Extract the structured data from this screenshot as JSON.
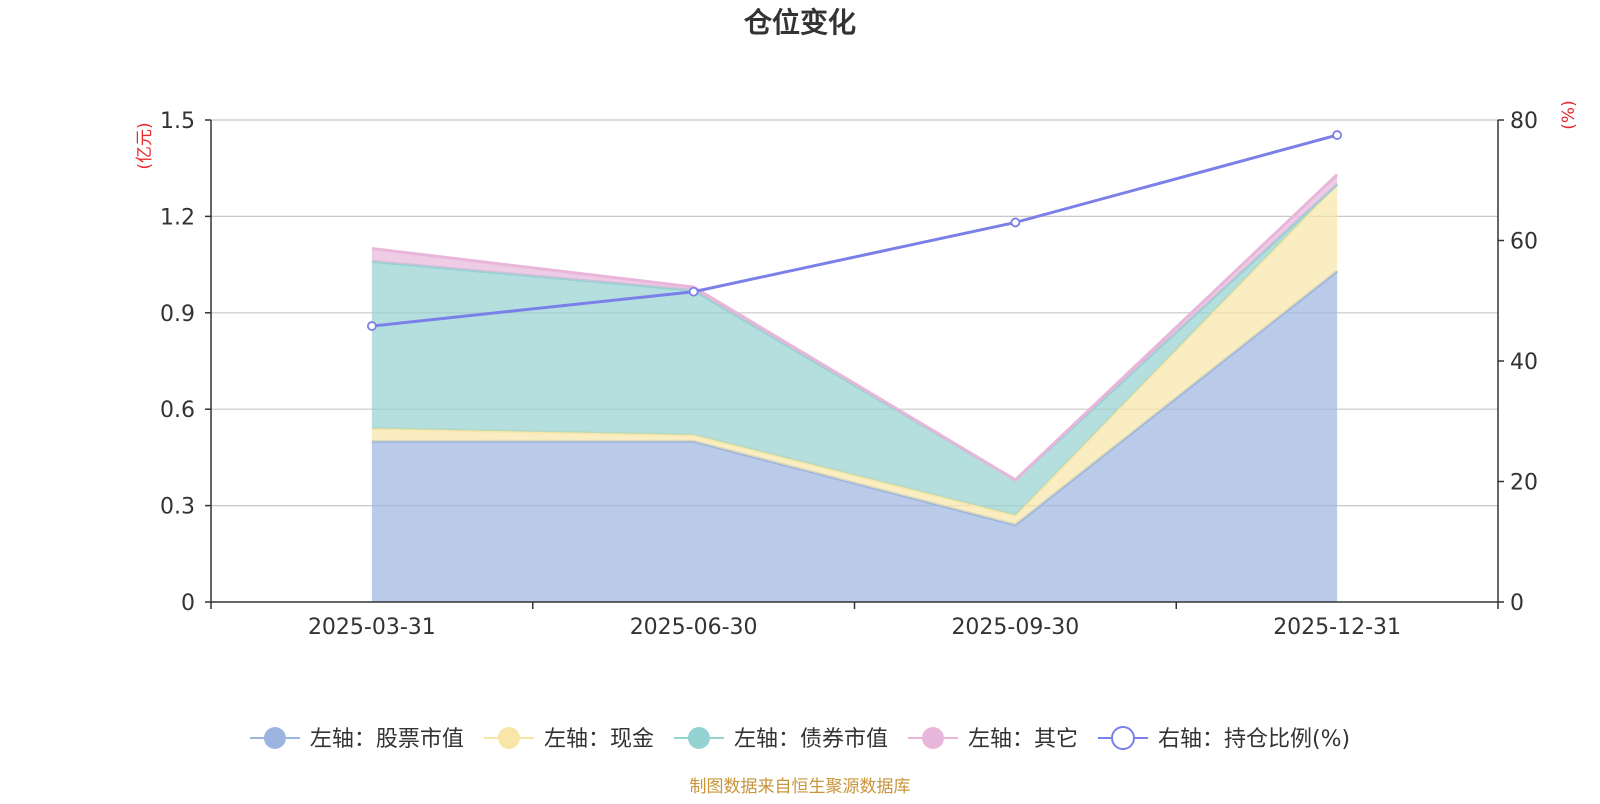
{
  "chart_data": {
    "type": "area",
    "title": "仓位变化",
    "categories": [
      "2025-03-31",
      "2025-06-30",
      "2025-09-30",
      "2025-12-31"
    ],
    "left_axis": {
      "unit_label": "(亿元)",
      "ylim": [
        0,
        1.5
      ],
      "ticks": [
        "0",
        "0.3",
        "0.6",
        "0.9",
        "1.2",
        "1.5"
      ]
    },
    "right_axis": {
      "unit_label": "(%)",
      "ylim": [
        0,
        80
      ],
      "ticks": [
        "0",
        "20",
        "40",
        "60",
        "80"
      ]
    },
    "series": [
      {
        "name": "股票市值",
        "legend": "左轴：股票市值",
        "axis": "left",
        "type": "stacked_area",
        "color": "#9bb5e0",
        "values": [
          0.5,
          0.5,
          0.24,
          1.03
        ]
      },
      {
        "name": "现金",
        "legend": "左轴：现金",
        "axis": "left",
        "type": "stacked_area",
        "color": "#f7e6a6",
        "values": [
          0.04,
          0.02,
          0.03,
          0.27
        ]
      },
      {
        "name": "债券市值",
        "legend": "左轴：债券市值",
        "axis": "left",
        "type": "stacked_area",
        "color": "#95d2d2",
        "values": [
          0.52,
          0.45,
          0.11,
          0.0
        ]
      },
      {
        "name": "其它",
        "legend": "左轴：其它",
        "axis": "left",
        "type": "stacked_area",
        "color": "#e8b6da",
        "values": [
          0.04,
          0.01,
          0.0,
          0.03
        ]
      },
      {
        "name": "持仓比例(%)",
        "legend": "右轴：持仓比例(%)",
        "axis": "right",
        "type": "line",
        "color": "#7b7fe8",
        "values": [
          45.8,
          51.5,
          63.0,
          77.5
        ]
      }
    ],
    "grid": true,
    "legend_position": "bottom"
  },
  "footer": {
    "source": "制图数据来自恒生聚源数据库"
  },
  "colors": {
    "unit_label": "#e8262b",
    "axis_text": "#333333",
    "grid": "#c8c8c8",
    "source": "#c9943a"
  }
}
